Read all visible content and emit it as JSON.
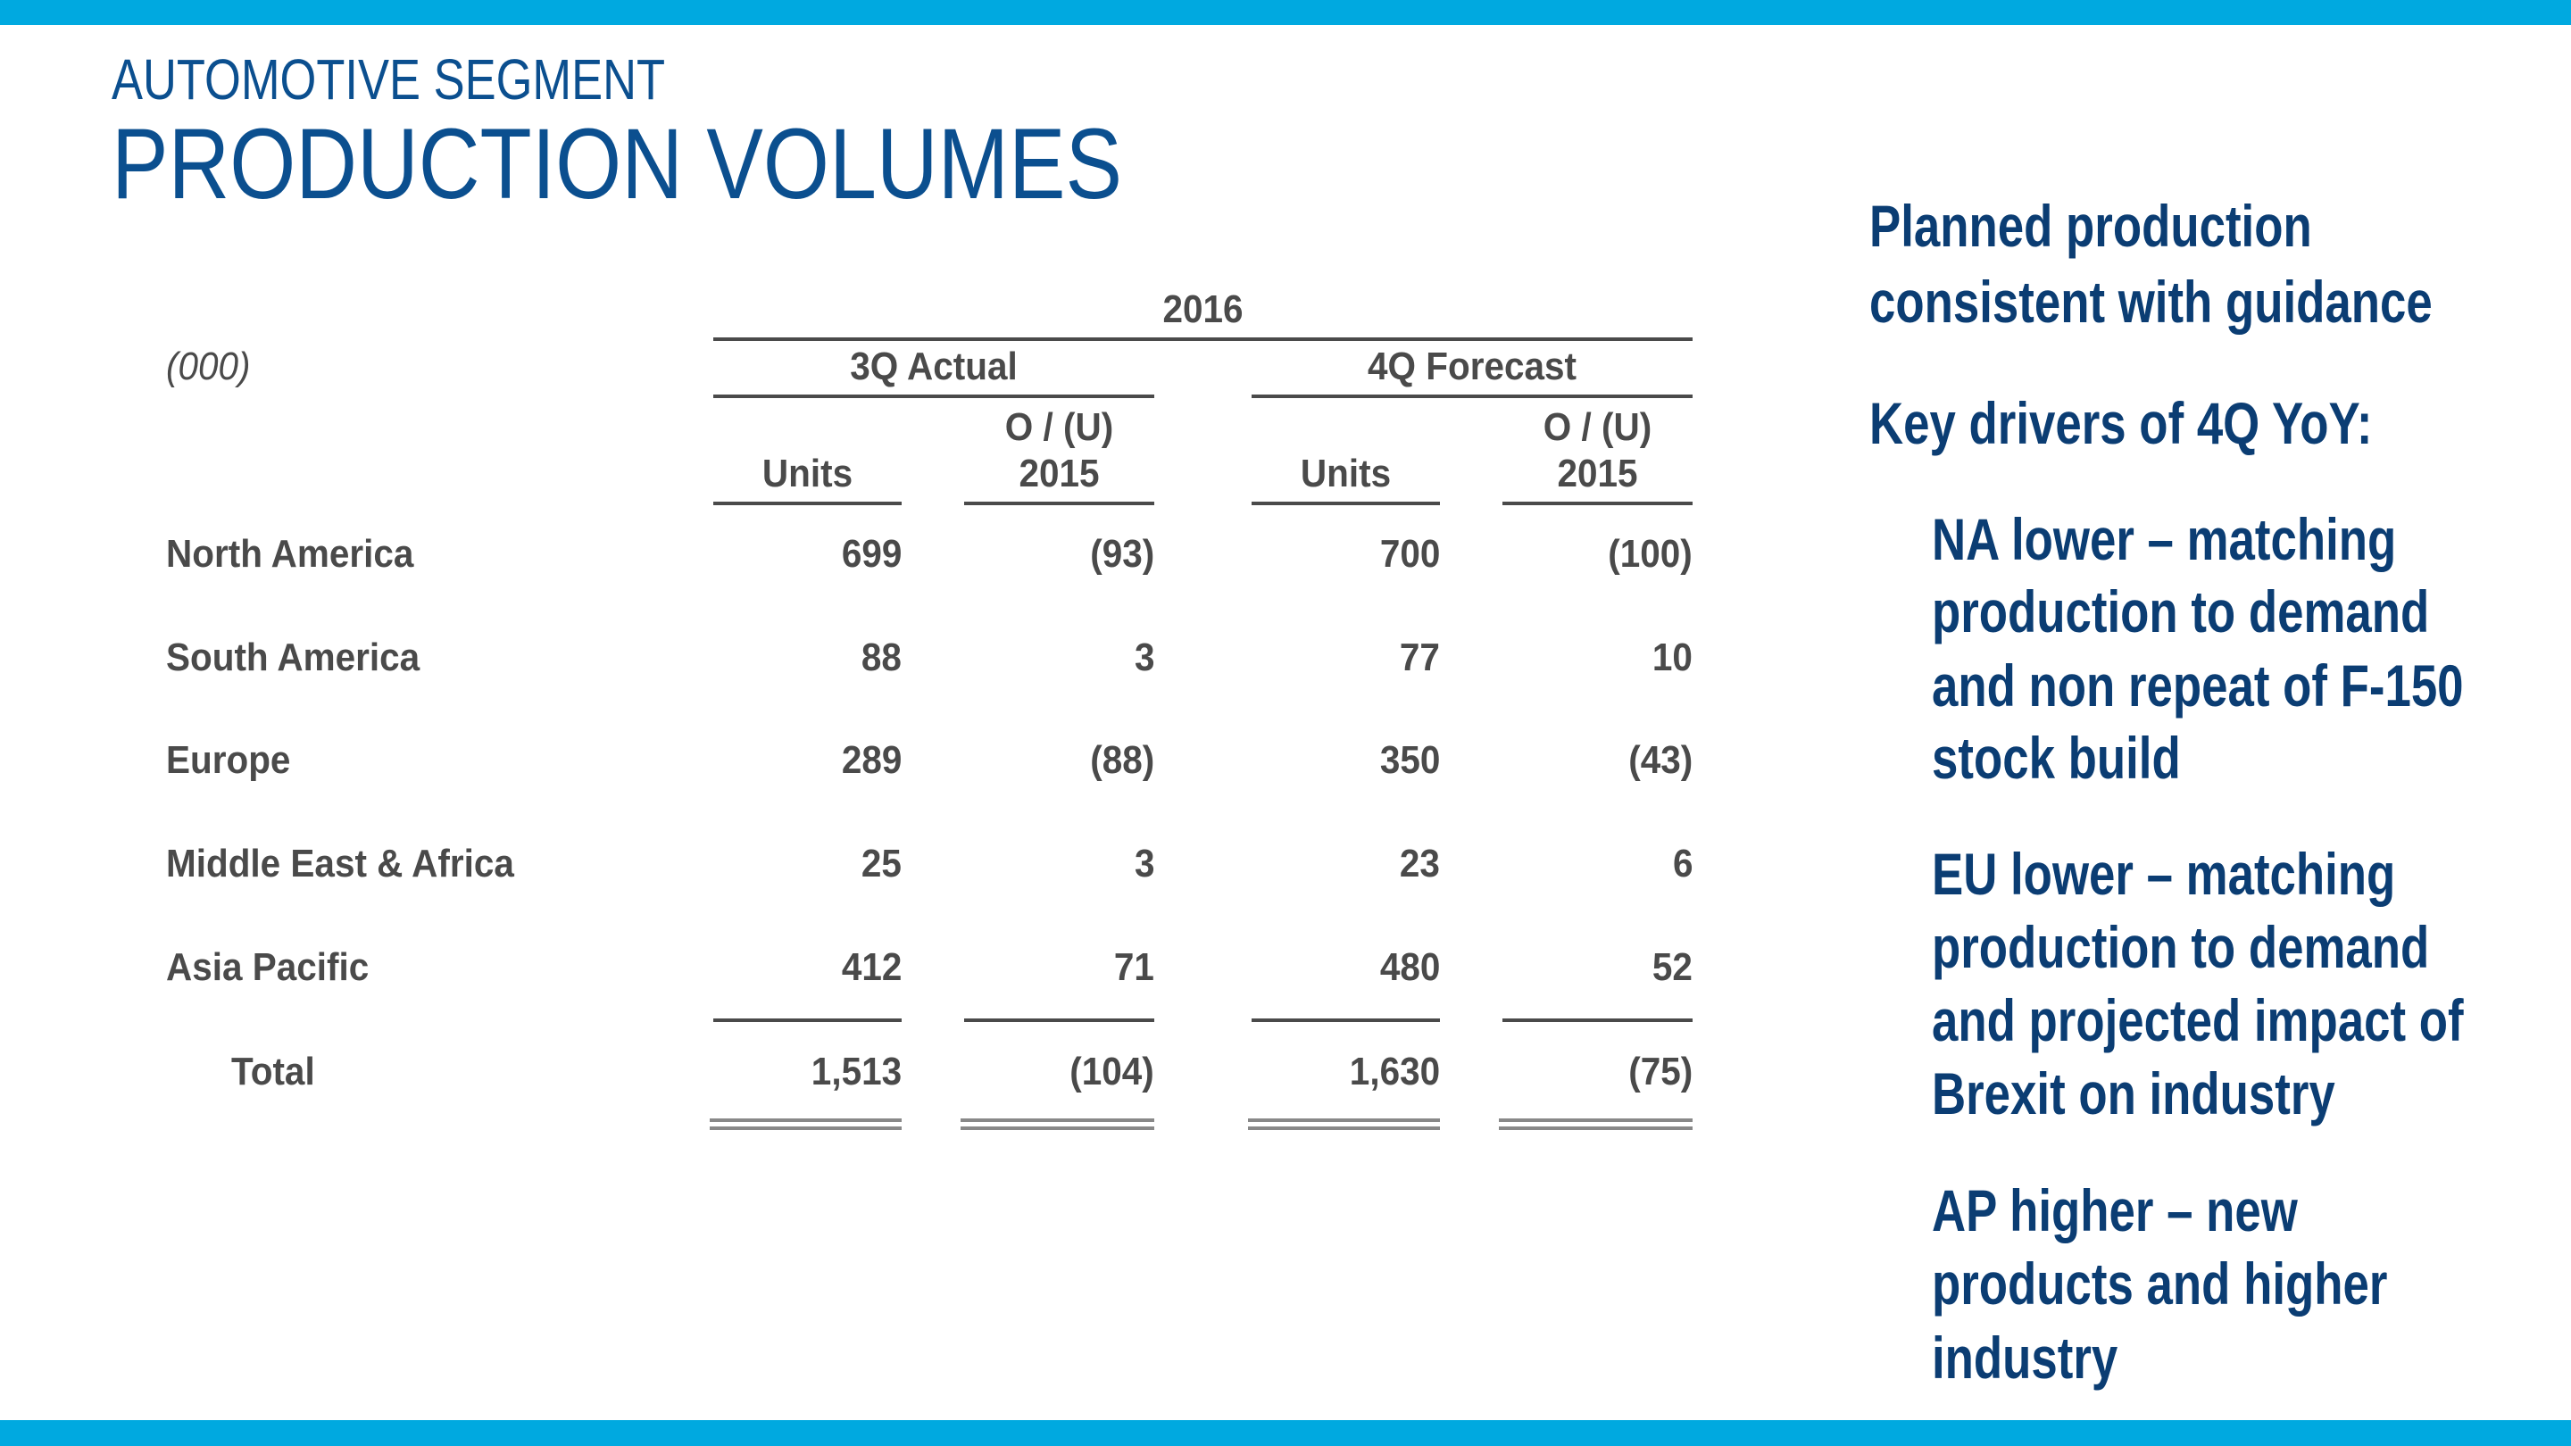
{
  "header": {
    "subtitle": "AUTOMOTIVE SEGMENT",
    "title": "PRODUCTION VOLUMES"
  },
  "colors": {
    "accent_bar": "#00a9e0",
    "title": "#0b4f8f",
    "body_text": "#0b3d73",
    "table_text": "#4a4a4a"
  },
  "table": {
    "unit_label": "(000)",
    "year": "2016",
    "groups": [
      "3Q Actual",
      "4Q Forecast"
    ],
    "columns": [
      {
        "line1": "",
        "line2": "Units"
      },
      {
        "line1": "O / (U)",
        "line2": "2015"
      },
      {
        "line1": "",
        "line2": "Units"
      },
      {
        "line1": "O / (U)",
        "line2": "2015"
      }
    ],
    "rows": [
      {
        "label": "North America",
        "values": [
          "699",
          "(93)",
          "700",
          "(100)"
        ]
      },
      {
        "label": "South America",
        "values": [
          "88",
          "3",
          "77",
          "10"
        ]
      },
      {
        "label": "Europe",
        "values": [
          "289",
          "(88)",
          "350",
          "(43)"
        ]
      },
      {
        "label": "Middle East & Africa",
        "values": [
          "25",
          "3",
          "23",
          "6"
        ]
      },
      {
        "label": "Asia Pacific",
        "values": [
          "412",
          "71",
          "480",
          "52"
        ]
      }
    ],
    "total": {
      "label": "Total",
      "values": [
        "1,513",
        "(104)",
        "1,630",
        "(75)"
      ]
    }
  },
  "commentary": {
    "heading_lines": [
      "Planned production",
      "consistent with guidance"
    ],
    "drivers_heading": "Key drivers of 4Q YoY:",
    "bullets": [
      {
        "lines": [
          "NA lower – matching",
          "production to demand",
          "and non repeat of F-150",
          "stock build"
        ]
      },
      {
        "lines": [
          "EU lower – matching",
          "production to demand",
          "and projected impact of",
          "Brexit on industry"
        ]
      },
      {
        "lines": [
          "AP higher – new",
          "products and higher",
          "industry"
        ]
      }
    ]
  }
}
